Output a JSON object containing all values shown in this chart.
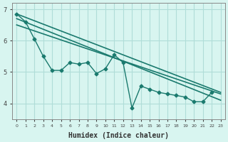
{
  "title": "",
  "xlabel": "Humidex (Indice chaleur)",
  "ylabel": "",
  "bg_color": "#d8f5f0",
  "grid_color": "#b0ddd8",
  "line_color": "#1a7a6e",
  "tick_color": "#555555",
  "x_data": [
    0,
    1,
    2,
    3,
    4,
    5,
    6,
    7,
    8,
    9,
    10,
    11,
    12,
    13,
    14,
    15,
    16,
    17,
    18,
    19,
    20,
    21,
    22,
    23
  ],
  "series1": [
    6.85,
    6.6,
    6.05,
    5.5,
    5.05,
    5.05,
    5.3,
    5.25,
    5.3,
    4.95,
    5.1,
    5.55,
    5.3,
    3.85,
    4.55,
    4.45,
    4.35,
    4.3,
    4.25,
    4.2,
    4.05,
    4.05,
    4.35,
    null
  ],
  "trend_lines": [
    [
      6.85,
      4.35
    ],
    [
      6.7,
      4.1
    ],
    [
      6.5,
      4.3
    ]
  ],
  "ylim": [
    3.5,
    7.2
  ],
  "xlim": [
    -0.5,
    23.5
  ],
  "yticks": [
    4,
    5,
    6,
    7
  ],
  "xtick_labels": [
    "0",
    "1",
    "2",
    "3",
    "4",
    "5",
    "6",
    "7",
    "8",
    "9",
    "10",
    "11",
    "12",
    "13",
    "14",
    "15",
    "16",
    "17",
    "18",
    "19",
    "20",
    "21",
    "22",
    "23"
  ]
}
